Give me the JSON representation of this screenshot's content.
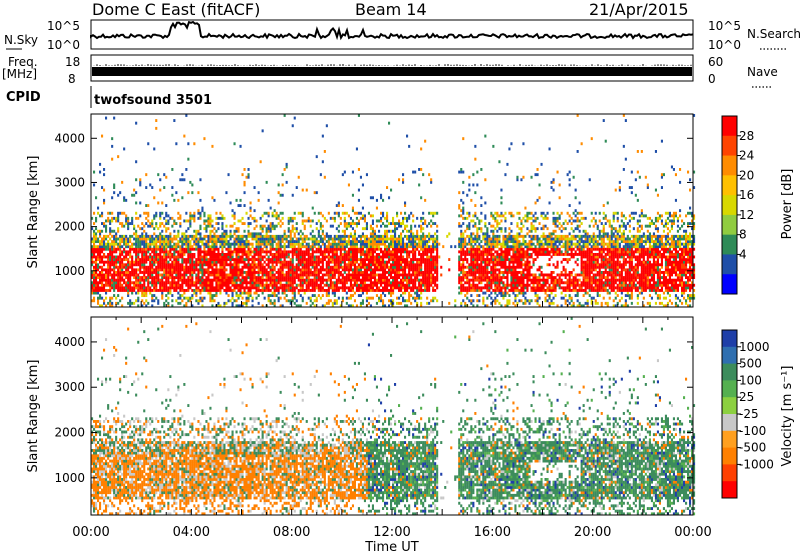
{
  "header": {
    "station": "Dome C East (fitACF)",
    "beam": "Beam 14",
    "date": "21/Apr/2015"
  },
  "strip": {
    "nsky_label": "N.Sky",
    "nsky_ticks": [
      "10^5",
      "10^0"
    ],
    "nsearch_label": "N.Search",
    "nsearch_ticks": [
      "10^5",
      "10^0"
    ],
    "freq_label": "Freq.",
    "freq_unit": "[MHz]",
    "freq_ticks": [
      "18",
      "8"
    ],
    "nave_label": "Nave",
    "nave_ticks": [
      "60",
      "0"
    ],
    "cpid_label": "CPID",
    "cpid_value": "twofsound 3501"
  },
  "chart_data": [
    {
      "type": "heatmap",
      "title": "",
      "xlabel": "",
      "ylabel": "Slant Range [km]",
      "xlim": [
        0,
        24
      ],
      "ylim": [
        180,
        4550
      ],
      "yticks": [
        1000,
        2000,
        3000,
        4000
      ],
      "colorbar": {
        "label": "Power [dB]",
        "ticks": [
          "28",
          "24",
          "20",
          "16",
          "12",
          "8",
          "4"
        ],
        "colors": [
          "#ff0000",
          "#ff4400",
          "#ff8c00",
          "#ffc000",
          "#d8d800",
          "#90cc40",
          "#2e8b57",
          "#1f4fa8",
          "#0000ff"
        ]
      }
    },
    {
      "type": "heatmap",
      "title": "",
      "xlabel": "Time UT",
      "ylabel": "Slant Range [km]",
      "xlim": [
        0,
        24
      ],
      "ylim": [
        180,
        4550
      ],
      "xticks": [
        "00:00",
        "04:00",
        "08:00",
        "12:00",
        "16:00",
        "20:00",
        "00:00"
      ],
      "yticks": [
        1000,
        2000,
        3000,
        4000
      ],
      "colorbar": {
        "label": "Velocity [m s⁻¹]",
        "ticks": [
          "1000",
          "500",
          "100",
          "25",
          "-25",
          "-100",
          "-500",
          "-1000"
        ],
        "colors": [
          "#1f3fa8",
          "#2f6fb0",
          "#3c8c5c",
          "#55b050",
          "#8cd040",
          "#c8c8c8",
          "#ffa020",
          "#ff8000",
          "#ff4000",
          "#ff0000"
        ]
      }
    }
  ]
}
